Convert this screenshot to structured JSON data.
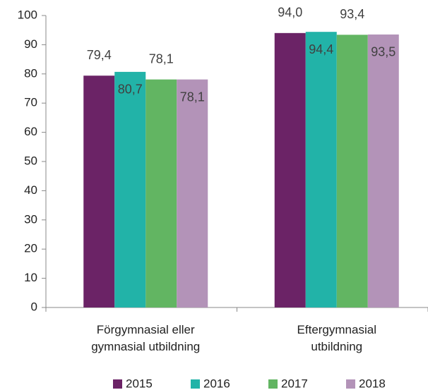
{
  "chart_data": {
    "type": "bar",
    "categories": [
      [
        "Förgymnasial eller",
        "gymnasial utbildning"
      ],
      [
        "Eftergymnasial",
        "utbildning"
      ]
    ],
    "series": [
      {
        "name": "2015",
        "color": "#6b2366",
        "values": [
          79.4,
          94.0
        ],
        "value_labels": [
          "79,4",
          "94,0"
        ]
      },
      {
        "name": "2016",
        "color": "#22b3a8",
        "values": [
          80.7,
          94.4
        ],
        "value_labels": [
          "80,7",
          "94,4"
        ]
      },
      {
        "name": "2017",
        "color": "#62b562",
        "values": [
          78.1,
          93.4
        ],
        "value_labels": [
          "78,1",
          "93,4"
        ]
      },
      {
        "name": "2018",
        "color": "#b393b8",
        "values": [
          78.1,
          93.5
        ],
        "value_labels": [
          "78,1",
          "93,5"
        ]
      }
    ],
    "ylim": [
      0,
      100
    ],
    "yticks": [
      0,
      10,
      20,
      30,
      40,
      50,
      60,
      70,
      80,
      90,
      100
    ],
    "grid": false,
    "legend": "bottom"
  }
}
